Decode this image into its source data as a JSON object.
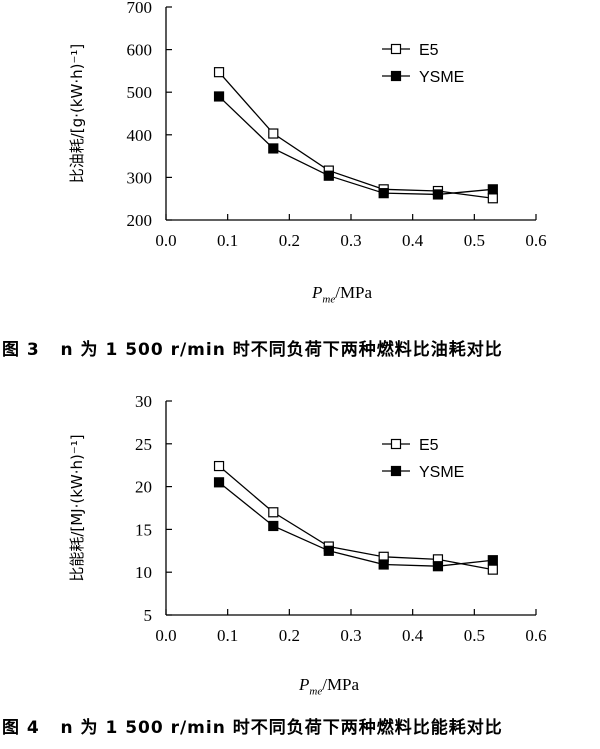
{
  "chart_data": [
    {
      "type": "line",
      "caption": "图 3   n 为 1 500 r/min 时不同负荷下两种燃料比油耗对比",
      "ylabel": "比油耗/[g·(kW·h)⁻¹]",
      "xlabel_symbol": "P",
      "xlabel_sub": "me",
      "xlabel_unit": "/MPa",
      "xlim": [
        0.0,
        0.6
      ],
      "ylim": [
        200,
        700
      ],
      "xticks": [
        "0.0",
        "0.1",
        "0.2",
        "0.3",
        "0.4",
        "0.5",
        "0.6"
      ],
      "yticks": [
        "200",
        "300",
        "400",
        "500",
        "600",
        "700"
      ],
      "legend_position": "top-right",
      "series": [
        {
          "name": "E5",
          "marker": "open-square",
          "x": [
            0.086,
            0.174,
            0.264,
            0.353,
            0.441,
            0.53
          ],
          "y": [
            547,
            403,
            316,
            272,
            268,
            251
          ]
        },
        {
          "name": "YSME",
          "marker": "filled-square",
          "x": [
            0.086,
            0.174,
            0.264,
            0.353,
            0.441,
            0.53
          ],
          "y": [
            490,
            368,
            304,
            263,
            260,
            272
          ]
        }
      ]
    },
    {
      "type": "line",
      "caption": "图 4   n 为 1 500 r/min 时不同负荷下两种燃料比能耗对比",
      "ylabel": "比能耗/[MJ·(kW·h)⁻¹]",
      "xlabel_symbol": "P",
      "xlabel_sub": "me",
      "xlabel_unit": "/MPa",
      "xlim": [
        0.0,
        0.6
      ],
      "ylim": [
        5,
        30
      ],
      "xticks": [
        "0.0",
        "0.1",
        "0.2",
        "0.3",
        "0.4",
        "0.5",
        "0.6"
      ],
      "yticks": [
        "5",
        "10",
        "15",
        "20",
        "25",
        "30"
      ],
      "legend_position": "top-right",
      "series": [
        {
          "name": "E5",
          "marker": "open-square",
          "x": [
            0.086,
            0.174,
            0.264,
            0.353,
            0.441,
            0.53
          ],
          "y": [
            22.4,
            17.0,
            13.0,
            11.8,
            11.5,
            10.3
          ]
        },
        {
          "name": "YSME",
          "marker": "filled-square",
          "x": [
            0.086,
            0.174,
            0.264,
            0.353,
            0.441,
            0.53
          ],
          "y": [
            20.5,
            15.4,
            12.5,
            10.9,
            10.7,
            11.4
          ]
        }
      ]
    }
  ]
}
